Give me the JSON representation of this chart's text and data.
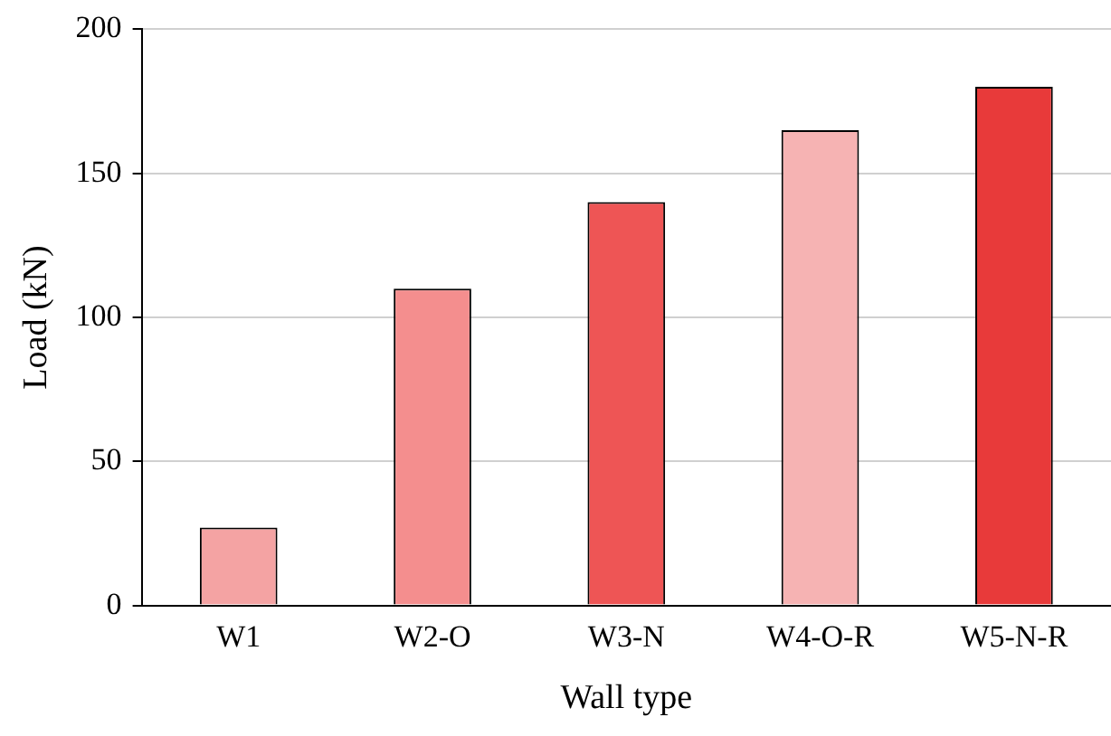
{
  "chart_data": {
    "type": "bar",
    "xlabel": "Wall type",
    "ylabel": "Load (kN)",
    "categories": [
      "W1",
      "W2-O",
      "W3-N",
      "W4-O-R",
      "W5-N-R"
    ],
    "values": [
      27,
      110,
      140,
      165,
      180
    ],
    "colors": [
      "#f4a3a3",
      "#f48e8e",
      "#ee5555",
      "#f6b3b3",
      "#e83a3a"
    ],
    "ylim": [
      0,
      200
    ],
    "yticks": [
      0,
      50,
      100,
      150,
      200
    ],
    "grid": "y",
    "legend": false
  }
}
